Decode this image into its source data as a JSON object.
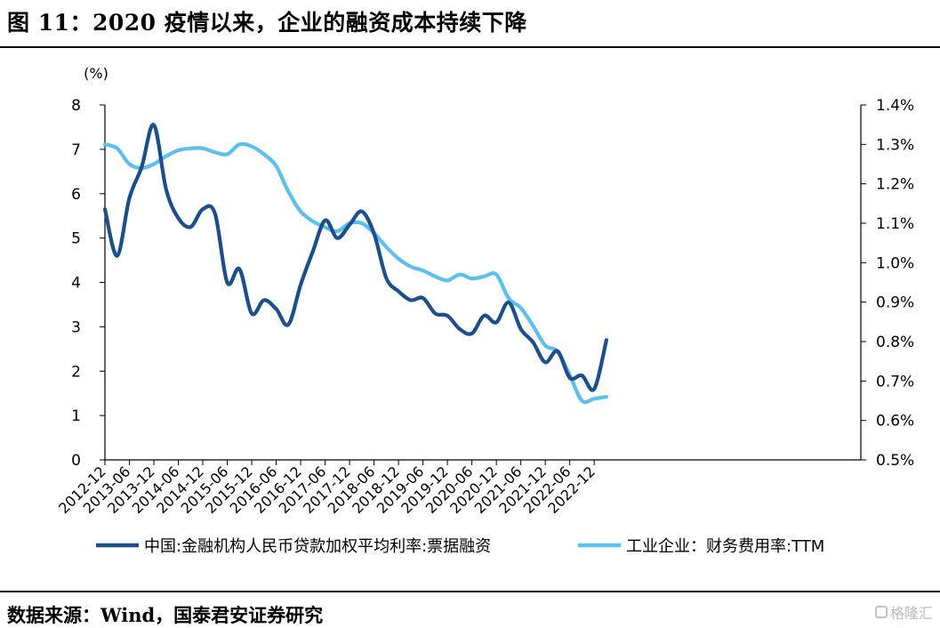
{
  "title": "图 11：2020 疫情以来，企业的融资成本持续下降",
  "source": "数据来源：Wind，国泰君安证券研究",
  "watermark": "格隆汇",
  "chart_data": {
    "type": "line",
    "unit_label": "(%)",
    "x": [
      "2012-12",
      "2013-06",
      "2013-12",
      "2014-06",
      "2014-12",
      "2015-06",
      "2015-12",
      "2016-06",
      "2016-12",
      "2017-06",
      "2017-12",
      "2018-06",
      "2018-12",
      "2019-06",
      "2019-12",
      "2020-06",
      "2020-12",
      "2021-06",
      "2021-12",
      "2022-06",
      "2022-12"
    ],
    "left_axis": {
      "ylim": [
        0,
        8
      ],
      "ticks": [
        "0",
        "1",
        "2",
        "3",
        "4",
        "5",
        "6",
        "7",
        "8"
      ]
    },
    "right_axis": {
      "ylim": [
        0.5,
        1.4
      ],
      "ticks": [
        "0.5%",
        "0.6%",
        "0.7%",
        "0.8%",
        "0.9%",
        "1.0%",
        "1.1%",
        "1.2%",
        "1.3%",
        "1.4%"
      ]
    },
    "series": [
      {
        "name": "中国:金融机构人民币贷款加权平均利率:票据融资",
        "axis": "left",
        "color": "#1a4f8c",
        "points": [
          [
            "2012-12",
            5.65
          ],
          [
            "2013-03",
            4.6
          ],
          [
            "2013-06",
            5.9
          ],
          [
            "2013-09",
            6.6
          ],
          [
            "2013-12",
            7.55
          ],
          [
            "2014-03",
            6.1
          ],
          [
            "2014-06",
            5.45
          ],
          [
            "2014-09",
            5.25
          ],
          [
            "2014-12",
            5.65
          ],
          [
            "2015-03",
            5.55
          ],
          [
            "2015-06",
            4.0
          ],
          [
            "2015-09",
            4.3
          ],
          [
            "2015-12",
            3.3
          ],
          [
            "2016-03",
            3.6
          ],
          [
            "2016-06",
            3.4
          ],
          [
            "2016-09",
            3.05
          ],
          [
            "2016-12",
            3.95
          ],
          [
            "2017-03",
            4.7
          ],
          [
            "2017-06",
            5.4
          ],
          [
            "2017-09",
            5.0
          ],
          [
            "2017-12",
            5.3
          ],
          [
            "2018-03",
            5.6
          ],
          [
            "2018-06",
            5.1
          ],
          [
            "2018-09",
            4.1
          ],
          [
            "2018-12",
            3.8
          ],
          [
            "2019-03",
            3.6
          ],
          [
            "2019-06",
            3.65
          ],
          [
            "2019-09",
            3.3
          ],
          [
            "2019-12",
            3.25
          ],
          [
            "2020-03",
            2.95
          ],
          [
            "2020-06",
            2.85
          ],
          [
            "2020-09",
            3.25
          ],
          [
            "2020-12",
            3.1
          ],
          [
            "2021-03",
            3.55
          ],
          [
            "2021-06",
            2.95
          ],
          [
            "2021-09",
            2.65
          ],
          [
            "2021-12",
            2.2
          ],
          [
            "2022-03",
            2.45
          ],
          [
            "2022-06",
            1.85
          ],
          [
            "2022-09",
            1.9
          ],
          [
            "2022-12",
            1.6
          ],
          [
            "2023-03",
            2.7
          ]
        ]
      },
      {
        "name": "工业企业：财务费用率:TTM",
        "axis": "right",
        "color": "#5bc0ee",
        "points": [
          [
            "2012-12",
            1.3
          ],
          [
            "2013-03",
            1.29
          ],
          [
            "2013-06",
            1.25
          ],
          [
            "2013-09",
            1.24
          ],
          [
            "2013-12",
            1.25
          ],
          [
            "2014-03",
            1.27
          ],
          [
            "2014-06",
            1.285
          ],
          [
            "2014-09",
            1.29
          ],
          [
            "2014-12",
            1.29
          ],
          [
            "2015-03",
            1.28
          ],
          [
            "2015-06",
            1.275
          ],
          [
            "2015-09",
            1.3
          ],
          [
            "2015-12",
            1.295
          ],
          [
            "2016-03",
            1.275
          ],
          [
            "2016-06",
            1.245
          ],
          [
            "2016-09",
            1.18
          ],
          [
            "2016-12",
            1.13
          ],
          [
            "2017-03",
            1.105
          ],
          [
            "2017-06",
            1.09
          ],
          [
            "2017-09",
            1.08
          ],
          [
            "2017-12",
            1.1
          ],
          [
            "2018-03",
            1.1
          ],
          [
            "2018-06",
            1.075
          ],
          [
            "2018-09",
            1.04
          ],
          [
            "2018-12",
            1.01
          ],
          [
            "2019-03",
            0.99
          ],
          [
            "2019-06",
            0.98
          ],
          [
            "2019-09",
            0.965
          ],
          [
            "2019-12",
            0.955
          ],
          [
            "2020-03",
            0.97
          ],
          [
            "2020-06",
            0.96
          ],
          [
            "2020-09",
            0.965
          ],
          [
            "2020-12",
            0.97
          ],
          [
            "2021-03",
            0.91
          ],
          [
            "2021-06",
            0.885
          ],
          [
            "2021-09",
            0.84
          ],
          [
            "2021-12",
            0.79
          ],
          [
            "2022-03",
            0.775
          ],
          [
            "2022-06",
            0.715
          ],
          [
            "2022-09",
            0.65
          ],
          [
            "2022-12",
            0.655
          ],
          [
            "2023-03",
            0.66
          ]
        ]
      }
    ],
    "legend_placement": "bottom",
    "grid": false
  }
}
